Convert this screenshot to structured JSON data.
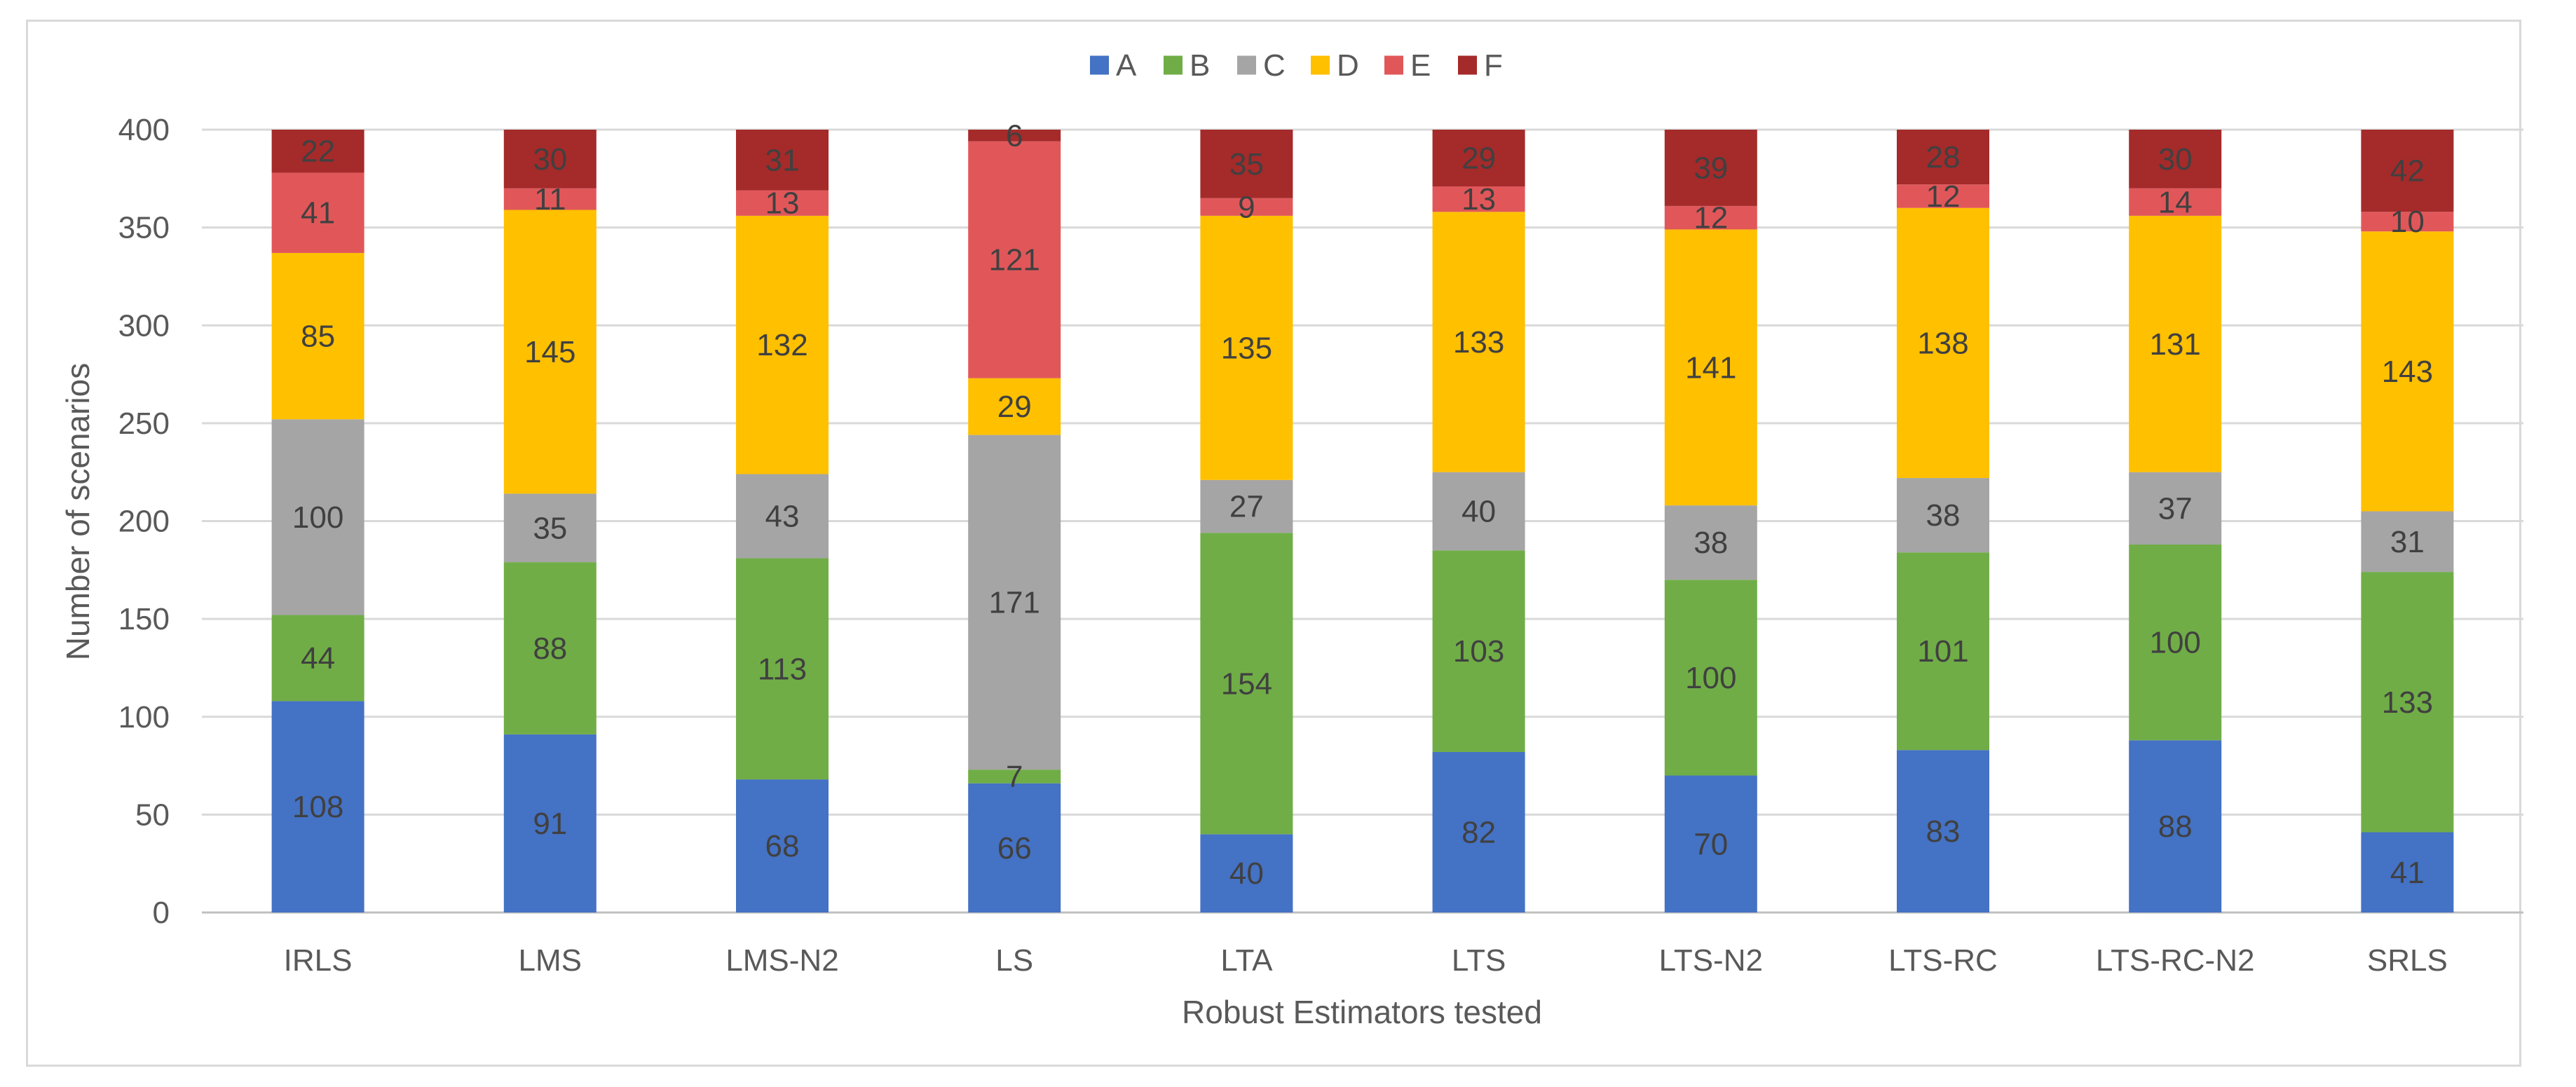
{
  "chart_data": {
    "type": "bar",
    "stacked": true,
    "title": "",
    "xlabel": "Robust Estimators tested",
    "ylabel": "Number of scenarios",
    "ylim": [
      0,
      400
    ],
    "yticks": [
      0,
      50,
      100,
      150,
      200,
      250,
      300,
      350,
      400
    ],
    "grid": true,
    "legend_position": "top-center",
    "categories": [
      "IRLS",
      "LMS",
      "LMS-N2",
      "LS",
      "LTA",
      "LTS",
      "LTS-N2",
      "LTS-RC",
      "LTS-RC-N2",
      "SRLS"
    ],
    "series": [
      {
        "name": "A",
        "color": "#4472c4",
        "values": [
          108,
          91,
          68,
          66,
          40,
          82,
          70,
          83,
          88,
          41
        ]
      },
      {
        "name": "B",
        "color": "#70ad47",
        "values": [
          44,
          88,
          113,
          7,
          154,
          103,
          100,
          101,
          100,
          133
        ]
      },
      {
        "name": "C",
        "color": "#a5a5a5",
        "values": [
          100,
          35,
          43,
          171,
          27,
          40,
          38,
          38,
          37,
          31
        ]
      },
      {
        "name": "D",
        "color": "#ffc000",
        "values": [
          85,
          145,
          132,
          29,
          135,
          133,
          141,
          138,
          131,
          143
        ]
      },
      {
        "name": "E",
        "color": "#e15759",
        "values": [
          41,
          11,
          13,
          121,
          9,
          13,
          12,
          12,
          14,
          10
        ]
      },
      {
        "name": "F",
        "color": "#a52a2a",
        "values": [
          22,
          30,
          31,
          6,
          35,
          29,
          39,
          28,
          30,
          42
        ]
      }
    ]
  }
}
